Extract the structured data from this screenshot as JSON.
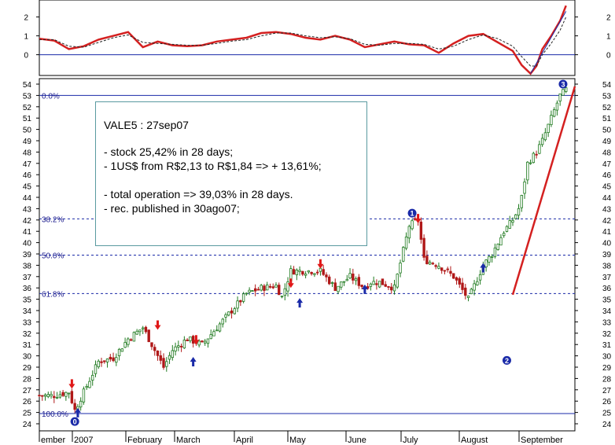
{
  "chart_data": [
    {
      "type": "line",
      "panel": "indicator",
      "y_ticks": [
        "0",
        "1",
        "2"
      ],
      "ylim": [
        -1.1,
        2.9
      ],
      "series": [
        {
          "color": "#d42020",
          "x": [
            0,
            5,
            10,
            15,
            20,
            25,
            30,
            35,
            40,
            45,
            50,
            55,
            60,
            65,
            70,
            75,
            80,
            85,
            90,
            95,
            100,
            105,
            110,
            115,
            120,
            125,
            130,
            135,
            140,
            145,
            150,
            155,
            160,
            163,
            166,
            168,
            170,
            173,
            176,
            178
          ],
          "values": [
            0.85,
            0.75,
            0.3,
            0.45,
            0.8,
            1.0,
            1.2,
            0.4,
            0.7,
            0.5,
            0.45,
            0.5,
            0.7,
            0.8,
            0.9,
            1.15,
            1.2,
            1.1,
            0.9,
            0.8,
            1.0,
            0.8,
            0.4,
            0.55,
            0.7,
            0.55,
            0.5,
            0.1,
            0.6,
            1.0,
            1.1,
            0.65,
            0.2,
            -0.55,
            -1.0,
            -0.6,
            0.3,
            1.0,
            1.8,
            2.6
          ]
        },
        {
          "color": "#222222",
          "dashed": true,
          "x": [
            0,
            5,
            10,
            15,
            20,
            25,
            30,
            35,
            40,
            45,
            50,
            55,
            60,
            65,
            70,
            75,
            80,
            85,
            90,
            95,
            100,
            105,
            110,
            115,
            120,
            125,
            130,
            135,
            140,
            145,
            150,
            155,
            160,
            163,
            166,
            168,
            170,
            173,
            176,
            178
          ],
          "values": [
            0.8,
            0.8,
            0.45,
            0.4,
            0.65,
            0.9,
            1.05,
            0.65,
            0.6,
            0.55,
            0.5,
            0.5,
            0.6,
            0.72,
            0.8,
            1.0,
            1.15,
            1.15,
            1.0,
            0.9,
            0.95,
            0.85,
            0.55,
            0.5,
            0.6,
            0.6,
            0.55,
            0.3,
            0.45,
            0.8,
            1.05,
            0.85,
            0.45,
            -0.1,
            -0.6,
            -0.6,
            0.0,
            0.6,
            1.3,
            2.0
          ]
        },
        {
          "color": "#1a2aa8",
          "x": [
            166,
            178
          ],
          "values": [
            -1.0,
            2.3
          ]
        }
      ]
    },
    {
      "type": "candlestick",
      "panel": "price",
      "title": "VALE5 : 27sep07",
      "y_ticks": [
        "24",
        "25",
        "26",
        "27",
        "28",
        "29",
        "30",
        "31",
        "32",
        "33",
        "34",
        "35",
        "36",
        "37",
        "38",
        "39",
        "40",
        "41",
        "42",
        "43",
        "44",
        "45",
        "46",
        "47",
        "48",
        "49",
        "50",
        "51",
        "52",
        "53",
        "54"
      ],
      "ylim": [
        24,
        54
      ],
      "x_labels": [
        "ember",
        "2007",
        "February",
        "March",
        "April",
        "May",
        "June",
        "July",
        "August",
        "September"
      ],
      "fib_levels": [
        {
          "label": "0.0%",
          "value": 53.0
        },
        {
          "label": "38.2%",
          "value": 42.1
        },
        {
          "label": "50.0%",
          "value": 38.9
        },
        {
          "label": "61.8%",
          "value": 35.5
        },
        {
          "label": "100.0%",
          "value": 24.9
        }
      ],
      "markers": [
        {
          "label": "0",
          "x": 12,
          "price": 24.2
        },
        {
          "label": "1",
          "x": 126,
          "price": 42.6
        },
        {
          "label": "2",
          "x": 158,
          "price": 29.6
        },
        {
          "label": "3",
          "x": 177,
          "price": 54.0
        }
      ],
      "arrows_down": [
        {
          "x": 11,
          "price": 27.1
        },
        {
          "x": 40,
          "price": 32.3
        },
        {
          "x": 53,
          "price": 31.0
        },
        {
          "x": 85,
          "price": 36.0
        },
        {
          "x": 95,
          "price": 37.7
        },
        {
          "x": 128,
          "price": 41.7
        }
      ],
      "arrows_up": [
        {
          "x": 13,
          "price": 25.4
        },
        {
          "x": 52,
          "price": 29.9
        },
        {
          "x": 88,
          "price": 35.1
        },
        {
          "x": 110,
          "price": 36.3
        },
        {
          "x": 150,
          "price": 38.2
        }
      ],
      "trendline": {
        "x": [
          160,
          181
        ],
        "values": [
          35.4,
          53.8
        ]
      },
      "series": [
        {
          "name": "close",
          "x": [
            0,
            5,
            10,
            12,
            15,
            20,
            25,
            30,
            35,
            40,
            42,
            45,
            50,
            55,
            60,
            65,
            70,
            75,
            80,
            82,
            85,
            90,
            95,
            100,
            105,
            110,
            112,
            115,
            120,
            125,
            128,
            130,
            135,
            140,
            145,
            150,
            153,
            155,
            157,
            160,
            162,
            163,
            165,
            168,
            170,
            173,
            176,
            178
          ],
          "values": [
            26.5,
            26.5,
            26.8,
            25.2,
            26.8,
            29.5,
            29.8,
            31.5,
            32.5,
            30.0,
            29.0,
            30.5,
            31.5,
            31.0,
            32.5,
            34.0,
            35.5,
            36.0,
            36.2,
            35.2,
            37.5,
            37.5,
            37.5,
            36.0,
            37.0,
            36.0,
            36.5,
            36.5,
            36.0,
            41.5,
            42.0,
            38.5,
            38.0,
            37.0,
            35.0,
            38.0,
            39.0,
            40.0,
            41.0,
            42.0,
            43.0,
            44.0,
            47.0,
            48.0,
            49.0,
            51.0,
            53.0,
            53.5
          ]
        }
      ],
      "annotations": {
        "line1": "VALE5 : 27sep07",
        "line2": "-  stock 25,42% in 28 days;",
        "line3": "-  1US$ from R$2,13 to R$1,84 => + 13,61%;",
        "line4": "-  total operation => 39,03% in 28 days.",
        "line5": "-  rec. published in 30ago07;"
      }
    }
  ]
}
